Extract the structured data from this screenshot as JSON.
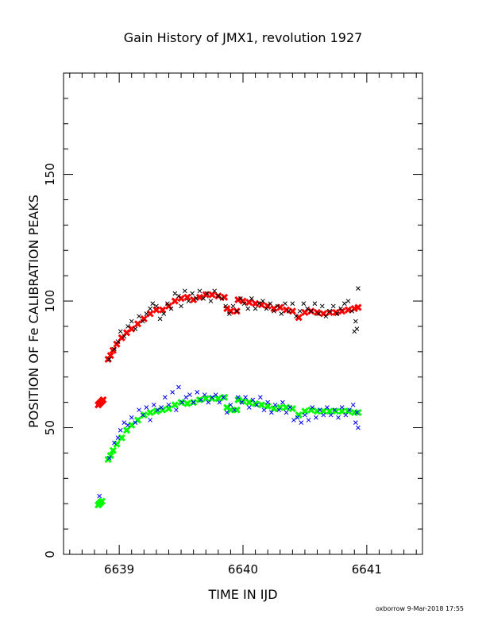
{
  "chart_data": {
    "type": "scatter",
    "title": "Gain History of JMX1, revolution 1927",
    "xlabel": "TIME IN IJD",
    "ylabel": "POSITION OF Fe CALIBRATION PEAKS",
    "footer": "oxborrow  9-Mar-2018 17:55",
    "xlim": [
      6638.55,
      6641.45
    ],
    "ylim": [
      0,
      190
    ],
    "x_ticks": [
      6639,
      6640,
      6641
    ],
    "y_ticks": [
      0,
      50,
      100,
      150
    ],
    "grid": false,
    "legend": "none",
    "series": [
      {
        "color": "#ff0000",
        "marker": "x",
        "points": [
          [
            6638.83,
            59
          ],
          [
            6638.84,
            59.5
          ],
          [
            6638.85,
            60
          ],
          [
            6638.86,
            60.5
          ],
          [
            6638.87,
            61
          ],
          [
            6638.91,
            77
          ],
          [
            6638.93,
            78.5
          ],
          [
            6638.95,
            80.5
          ],
          [
            6638.98,
            83
          ],
          [
            6639.02,
            85.5
          ],
          [
            6639.06,
            87.5
          ],
          [
            6639.1,
            89
          ],
          [
            6639.15,
            91
          ],
          [
            6639.2,
            93
          ],
          [
            6639.25,
            95
          ],
          [
            6639.3,
            96.5
          ],
          [
            6639.35,
            96.5
          ],
          [
            6639.4,
            98
          ],
          [
            6639.45,
            100
          ],
          [
            6639.5,
            101
          ],
          [
            6639.55,
            101.5
          ],
          [
            6639.6,
            100.5
          ],
          [
            6639.65,
            101.5
          ],
          [
            6639.7,
            102.5
          ],
          [
            6639.75,
            102.5
          ],
          [
            6639.8,
            102
          ],
          [
            6639.85,
            101.5
          ],
          [
            6639.87,
            97
          ],
          [
            6639.9,
            96
          ],
          [
            6639.95,
            96
          ],
          [
            6639.96,
            100.5
          ],
          [
            6640.0,
            100
          ],
          [
            6640.05,
            99.5
          ],
          [
            6640.1,
            99
          ],
          [
            6640.15,
            98.5
          ],
          [
            6640.2,
            98
          ],
          [
            6640.25,
            97
          ],
          [
            6640.3,
            97.5
          ],
          [
            6640.35,
            96.5
          ],
          [
            6640.4,
            96
          ],
          [
            6640.45,
            93.5
          ],
          [
            6640.5,
            95.5
          ],
          [
            6640.55,
            96
          ],
          [
            6640.6,
            95.5
          ],
          [
            6640.65,
            95
          ],
          [
            6640.7,
            95.5
          ],
          [
            6640.75,
            95.5
          ],
          [
            6640.8,
            96
          ],
          [
            6640.85,
            96.5
          ],
          [
            6640.9,
            97
          ],
          [
            6640.93,
            97.5
          ]
        ]
      },
      {
        "color": "#000000",
        "marker": "x",
        "points": [
          [
            6638.92,
            77
          ],
          [
            6638.96,
            81
          ],
          [
            6638.99,
            84
          ],
          [
            6639.01,
            88
          ],
          [
            6639.04,
            86
          ],
          [
            6639.07,
            90
          ],
          [
            6639.1,
            92
          ],
          [
            6639.13,
            89
          ],
          [
            6639.16,
            94
          ],
          [
            6639.19,
            92
          ],
          [
            6639.22,
            95
          ],
          [
            6639.25,
            97
          ],
          [
            6639.27,
            99
          ],
          [
            6639.3,
            98
          ],
          [
            6639.33,
            93
          ],
          [
            6639.36,
            95
          ],
          [
            6639.39,
            99
          ],
          [
            6639.42,
            97
          ],
          [
            6639.45,
            103
          ],
          [
            6639.48,
            102
          ],
          [
            6639.5,
            98
          ],
          [
            6639.53,
            104
          ],
          [
            6639.56,
            100
          ],
          [
            6639.59,
            103
          ],
          [
            6639.62,
            101
          ],
          [
            6639.65,
            104
          ],
          [
            6639.68,
            101
          ],
          [
            6639.71,
            103
          ],
          [
            6639.74,
            100
          ],
          [
            6639.77,
            104
          ],
          [
            6639.8,
            102
          ],
          [
            6639.83,
            101
          ],
          [
            6639.86,
            98
          ],
          [
            6639.89,
            95
          ],
          [
            6639.92,
            98
          ],
          [
            6639.95,
            96
          ],
          [
            6639.98,
            101
          ],
          [
            6640.01,
            99
          ],
          [
            6640.04,
            97
          ],
          [
            6640.07,
            101
          ],
          [
            6640.1,
            97
          ],
          [
            6640.13,
            99
          ],
          [
            6640.16,
            100
          ],
          [
            6640.19,
            97
          ],
          [
            6640.22,
            99
          ],
          [
            6640.25,
            96
          ],
          [
            6640.28,
            98
          ],
          [
            6640.31,
            95
          ],
          [
            6640.34,
            99
          ],
          [
            6640.37,
            96
          ],
          [
            6640.4,
            99
          ],
          [
            6640.43,
            94
          ],
          [
            6640.46,
            96
          ],
          [
            6640.49,
            99
          ],
          [
            6640.52,
            97
          ],
          [
            6640.55,
            96
          ],
          [
            6640.58,
            99
          ],
          [
            6640.61,
            95
          ],
          [
            6640.64,
            98
          ],
          [
            6640.67,
            94
          ],
          [
            6640.7,
            96
          ],
          [
            6640.73,
            98
          ],
          [
            6640.76,
            95
          ],
          [
            6640.79,
            97
          ],
          [
            6640.82,
            99
          ],
          [
            6640.85,
            100
          ],
          [
            6640.88,
            96
          ],
          [
            6640.9,
            88
          ],
          [
            6640.91,
            92
          ],
          [
            6640.92,
            89
          ],
          [
            6640.93,
            105
          ]
        ]
      },
      {
        "color": "#00ff00",
        "marker": "x",
        "points": [
          [
            6638.83,
            19.5
          ],
          [
            6638.84,
            20
          ],
          [
            6638.85,
            20.5
          ],
          [
            6638.86,
            21
          ],
          [
            6638.91,
            37.5
          ],
          [
            6638.93,
            39
          ],
          [
            6638.95,
            41
          ],
          [
            6638.98,
            43.5
          ],
          [
            6639.02,
            46
          ],
          [
            6639.06,
            49
          ],
          [
            6639.1,
            51
          ],
          [
            6639.15,
            53
          ],
          [
            6639.2,
            55
          ],
          [
            6639.25,
            56
          ],
          [
            6639.3,
            56.5
          ],
          [
            6639.35,
            57
          ],
          [
            6639.4,
            57.5
          ],
          [
            6639.45,
            59
          ],
          [
            6639.5,
            60
          ],
          [
            6639.55,
            59.5
          ],
          [
            6639.6,
            60
          ],
          [
            6639.65,
            61
          ],
          [
            6639.7,
            61.5
          ],
          [
            6639.75,
            61.5
          ],
          [
            6639.8,
            61.5
          ],
          [
            6639.85,
            62
          ],
          [
            6639.87,
            58
          ],
          [
            6639.9,
            57
          ],
          [
            6639.95,
            57
          ],
          [
            6639.96,
            61
          ],
          [
            6640.0,
            60.5
          ],
          [
            6640.05,
            60
          ],
          [
            6640.1,
            59.5
          ],
          [
            6640.15,
            59
          ],
          [
            6640.2,
            58.5
          ],
          [
            6640.25,
            57.5
          ],
          [
            6640.3,
            58
          ],
          [
            6640.35,
            58
          ],
          [
            6640.4,
            57.5
          ],
          [
            6640.45,
            55
          ],
          [
            6640.5,
            56.5
          ],
          [
            6640.55,
            57
          ],
          [
            6640.6,
            56.5
          ],
          [
            6640.65,
            56.5
          ],
          [
            6640.7,
            56.5
          ],
          [
            6640.75,
            56.5
          ],
          [
            6640.8,
            56.5
          ],
          [
            6640.85,
            56.5
          ],
          [
            6640.9,
            56
          ],
          [
            6640.93,
            56
          ]
        ]
      },
      {
        "color": "#0000ff",
        "marker": "x",
        "points": [
          [
            6638.84,
            23
          ],
          [
            6638.92,
            38
          ],
          [
            6638.96,
            44
          ],
          [
            6638.99,
            46
          ],
          [
            6639.01,
            49
          ],
          [
            6639.04,
            52
          ],
          [
            6639.07,
            51
          ],
          [
            6639.1,
            54
          ],
          [
            6639.13,
            52
          ],
          [
            6639.16,
            57
          ],
          [
            6639.19,
            55
          ],
          [
            6639.22,
            58
          ],
          [
            6639.25,
            53
          ],
          [
            6639.28,
            59
          ],
          [
            6639.31,
            57
          ],
          [
            6639.34,
            58
          ],
          [
            6639.37,
            62
          ],
          [
            6639.4,
            59
          ],
          [
            6639.43,
            64
          ],
          [
            6639.46,
            57
          ],
          [
            6639.48,
            66
          ],
          [
            6639.51,
            60
          ],
          [
            6639.54,
            62
          ],
          [
            6639.57,
            63
          ],
          [
            6639.6,
            60
          ],
          [
            6639.63,
            64
          ],
          [
            6639.66,
            61
          ],
          [
            6639.69,
            63
          ],
          [
            6639.72,
            60
          ],
          [
            6639.75,
            62
          ],
          [
            6639.78,
            63
          ],
          [
            6639.81,
            60
          ],
          [
            6639.84,
            62
          ],
          [
            6639.87,
            56
          ],
          [
            6639.9,
            59
          ],
          [
            6639.93,
            57
          ],
          [
            6639.96,
            62
          ],
          [
            6639.99,
            60
          ],
          [
            6640.02,
            62
          ],
          [
            6640.05,
            58
          ],
          [
            6640.08,
            61
          ],
          [
            6640.11,
            59
          ],
          [
            6640.14,
            62
          ],
          [
            6640.17,
            57
          ],
          [
            6640.2,
            60
          ],
          [
            6640.23,
            56
          ],
          [
            6640.26,
            59
          ],
          [
            6640.29,
            57
          ],
          [
            6640.32,
            60
          ],
          [
            6640.35,
            56
          ],
          [
            6640.38,
            58
          ],
          [
            6640.41,
            53
          ],
          [
            6640.44,
            54
          ],
          [
            6640.47,
            52
          ],
          [
            6640.5,
            55
          ],
          [
            6640.53,
            53
          ],
          [
            6640.56,
            58
          ],
          [
            6640.59,
            54
          ],
          [
            6640.62,
            57
          ],
          [
            6640.65,
            55
          ],
          [
            6640.68,
            58
          ],
          [
            6640.71,
            55
          ],
          [
            6640.74,
            57
          ],
          [
            6640.77,
            54
          ],
          [
            6640.8,
            58
          ],
          [
            6640.83,
            55
          ],
          [
            6640.86,
            57
          ],
          [
            6640.89,
            59
          ],
          [
            6640.91,
            52
          ],
          [
            6640.92,
            56
          ],
          [
            6640.93,
            50
          ]
        ]
      }
    ]
  }
}
